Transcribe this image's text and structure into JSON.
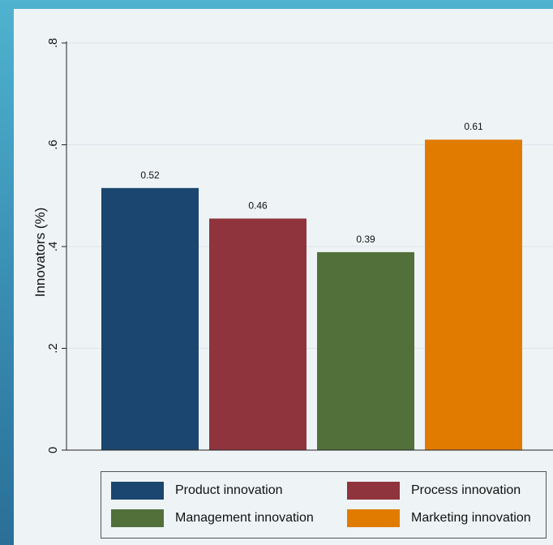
{
  "chart_data": {
    "type": "bar",
    "title": "",
    "xlabel": "",
    "ylabel": "Innovators (%)",
    "ylim": [
      0,
      0.8
    ],
    "yticks": [
      0,
      0.2,
      0.4,
      0.6,
      0.8
    ],
    "ytick_labels": [
      "0",
      ".2",
      ".4",
      ".6",
      ".8"
    ],
    "grid": true,
    "legend_position": "bottom",
    "categories": [
      "Product innovation",
      "Process innovation",
      "Management innovation",
      "Marketing innovation"
    ],
    "values": [
      0.515,
      0.455,
      0.389,
      0.61
    ],
    "value_labels": [
      "0.52",
      "0.46",
      "0.39",
      "0.61"
    ],
    "colors": [
      "#1b466f",
      "#8f343d",
      "#52703a",
      "#e07b00"
    ]
  },
  "legend": {
    "items": [
      {
        "label": "Product innovation",
        "color": "#1b466f"
      },
      {
        "label": "Process innovation",
        "color": "#8f343d"
      },
      {
        "label": "Management innovation",
        "color": "#52703a"
      },
      {
        "label": "Marketing innovation",
        "color": "#e07b00"
      }
    ]
  }
}
